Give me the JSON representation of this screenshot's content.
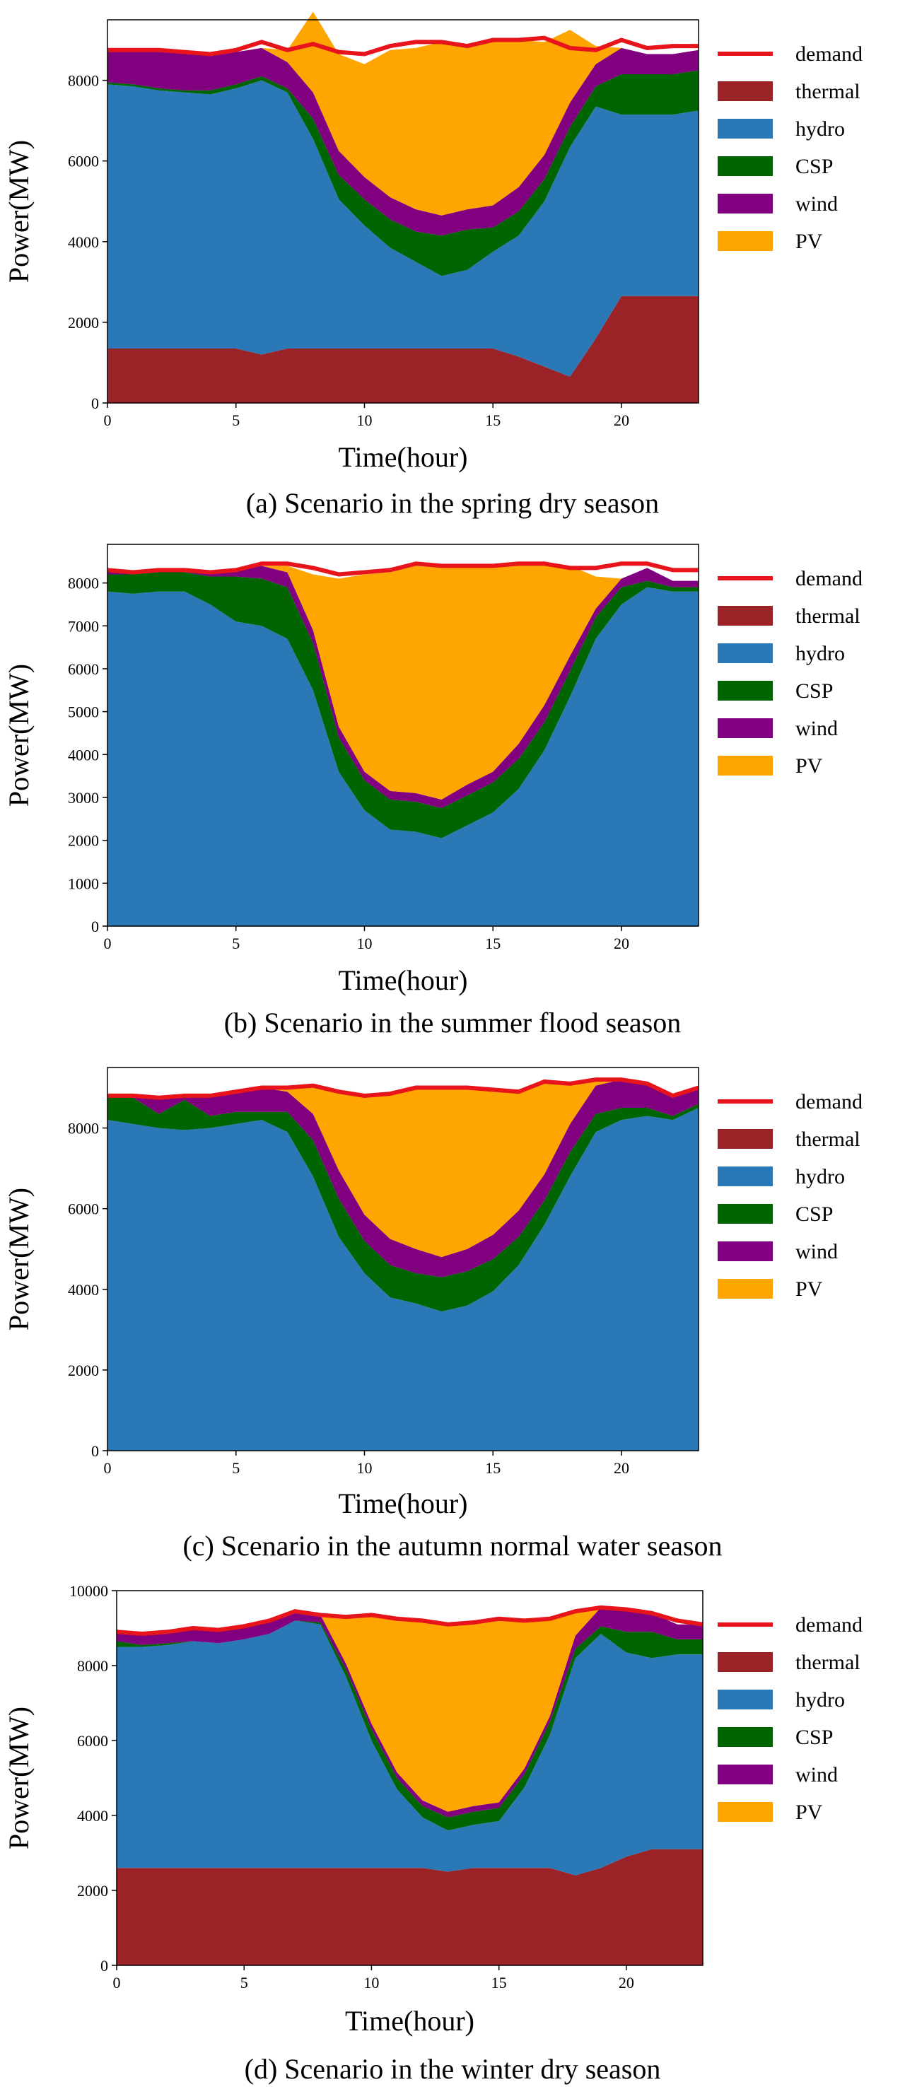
{
  "chart_data": [
    {
      "type": "area",
      "title": "(a) Scenario in the spring dry season",
      "xlabel": "Time(hour)",
      "ylabel": "Power(MW)",
      "xlim": [
        0,
        23
      ],
      "ylim": [
        0,
        9500
      ],
      "xticks": [
        0,
        5,
        10,
        15,
        20
      ],
      "yticks": [
        0,
        2000,
        4000,
        6000,
        8000
      ],
      "x": [
        0,
        1,
        2,
        3,
        4,
        5,
        6,
        7,
        8,
        9,
        10,
        11,
        12,
        13,
        14,
        15,
        16,
        17,
        18,
        19,
        20,
        21,
        22,
        23
      ],
      "legend": [
        "demand",
        "thermal",
        "hydro",
        "CSP",
        "wind",
        "PV"
      ],
      "series": [
        {
          "name": "thermal",
          "color": "#9b2226",
          "values": [
            1350,
            1350,
            1350,
            1350,
            1350,
            1350,
            1200,
            1350,
            1350,
            1350,
            1350,
            1350,
            1350,
            1350,
            1350,
            1350,
            1150,
            900,
            650,
            1600,
            2650,
            2650,
            2650,
            2650
          ]
        },
        {
          "name": "hydro",
          "color": "#2a78b5",
          "values": [
            6550,
            6500,
            6400,
            6350,
            6300,
            6450,
            6800,
            6350,
            5200,
            3700,
            3050,
            2500,
            2150,
            1800,
            1950,
            2400,
            3000,
            4100,
            5700,
            5750,
            4500,
            4500,
            4500,
            4600
          ]
        },
        {
          "name": "CSP",
          "color": "#006400",
          "values": [
            50,
            50,
            50,
            50,
            100,
            100,
            100,
            100,
            500,
            600,
            650,
            700,
            750,
            1000,
            1000,
            600,
            600,
            550,
            500,
            500,
            1000,
            1000,
            1000,
            1000
          ]
        },
        {
          "name": "wind",
          "color": "#800080",
          "values": [
            800,
            850,
            900,
            950,
            850,
            800,
            700,
            650,
            650,
            600,
            550,
            550,
            550,
            500,
            500,
            550,
            600,
            600,
            600,
            550,
            650,
            500,
            500,
            500
          ]
        },
        {
          "name": "PV",
          "color": "#ffa500",
          "values": [
            0,
            0,
            0,
            0,
            0,
            0,
            0,
            300,
            2000,
            2400,
            2800,
            3650,
            4000,
            4300,
            4000,
            4150,
            3650,
            2800,
            1800,
            450,
            0,
            0,
            0,
            0
          ]
        },
        {
          "name": "demand",
          "color": "#e8141c",
          "values": [
            8750,
            8750,
            8750,
            8700,
            8650,
            8750,
            8950,
            8750,
            8900,
            8700,
            8650,
            8850,
            8950,
            8950,
            8850,
            9000,
            9000,
            9050,
            8800,
            8750,
            9000,
            8800,
            8850,
            8850
          ]
        }
      ],
      "caption": "(a) Scenario in the spring dry season"
    },
    {
      "type": "area",
      "title": "(b) Scenario in the summer flood season",
      "xlabel": "Time(hour)",
      "ylabel": "Power(MW)",
      "xlim": [
        0,
        23
      ],
      "ylim": [
        0,
        8900
      ],
      "xticks": [
        0,
        5,
        10,
        15,
        20
      ],
      "yticks": [
        0,
        1000,
        2000,
        3000,
        4000,
        5000,
        6000,
        7000,
        8000
      ],
      "x": [
        0,
        1,
        2,
        3,
        4,
        5,
        6,
        7,
        8,
        9,
        10,
        11,
        12,
        13,
        14,
        15,
        16,
        17,
        18,
        19,
        20,
        21,
        22,
        23
      ],
      "legend": [
        "demand",
        "thermal",
        "hydro",
        "CSP",
        "wind",
        "PV"
      ],
      "series": [
        {
          "name": "thermal",
          "color": "#9b2226",
          "values": [
            0,
            0,
            0,
            0,
            0,
            0,
            0,
            0,
            0,
            0,
            0,
            0,
            0,
            0,
            0,
            0,
            0,
            0,
            0,
            0,
            0,
            0,
            0,
            0
          ]
        },
        {
          "name": "hydro",
          "color": "#2a78b5",
          "values": [
            7800,
            7750,
            7800,
            7800,
            7500,
            7100,
            7000,
            6700,
            5500,
            3600,
            2700,
            2250,
            2200,
            2050,
            2350,
            2650,
            3200,
            4100,
            5350,
            6700,
            7500,
            7900,
            7800,
            7800
          ]
        },
        {
          "name": "CSP",
          "color": "#006400",
          "values": [
            400,
            450,
            450,
            450,
            650,
            1050,
            1100,
            1200,
            1100,
            800,
            700,
            700,
            700,
            700,
            700,
            700,
            700,
            650,
            600,
            500,
            400,
            150,
            100,
            100
          ]
        },
        {
          "name": "wind",
          "color": "#800080",
          "values": [
            50,
            50,
            50,
            50,
            100,
            150,
            300,
            350,
            300,
            250,
            200,
            200,
            200,
            200,
            250,
            250,
            350,
            400,
            350,
            200,
            200,
            300,
            150,
            150
          ]
        },
        {
          "name": "PV",
          "color": "#ffa500",
          "values": [
            0,
            0,
            0,
            0,
            0,
            0,
            0,
            150,
            1300,
            3450,
            4600,
            5100,
            5300,
            5400,
            5100,
            4800,
            4200,
            3300,
            2100,
            750,
            0,
            0,
            0,
            0
          ]
        },
        {
          "name": "demand",
          "color": "#e8141c",
          "values": [
            8300,
            8250,
            8300,
            8300,
            8250,
            8300,
            8450,
            8450,
            8350,
            8200,
            8250,
            8300,
            8450,
            8400,
            8400,
            8400,
            8450,
            8450,
            8350,
            8350,
            8450,
            8450,
            8300,
            8300
          ]
        }
      ],
      "caption": "(b) Scenario in the summer flood season"
    },
    {
      "type": "area",
      "title": "(c) Scenario in the autumn normal water season",
      "xlabel": "Time(hour)",
      "ylabel": "Power(MW)",
      "xlim": [
        0,
        23
      ],
      "ylim": [
        0,
        9500
      ],
      "xticks": [
        0,
        5,
        10,
        15,
        20
      ],
      "yticks": [
        0,
        2000,
        4000,
        6000,
        8000
      ],
      "x": [
        0,
        1,
        2,
        3,
        4,
        5,
        6,
        7,
        8,
        9,
        10,
        11,
        12,
        13,
        14,
        15,
        16,
        17,
        18,
        19,
        20,
        21,
        22,
        23
      ],
      "legend": [
        "demand",
        "thermal",
        "hydro",
        "CSP",
        "wind",
        "PV"
      ],
      "series": [
        {
          "name": "thermal",
          "color": "#9b2226",
          "values": [
            0,
            0,
            0,
            0,
            0,
            0,
            0,
            0,
            0,
            0,
            0,
            0,
            0,
            0,
            0,
            0,
            0,
            0,
            0,
            0,
            0,
            0,
            0,
            0
          ]
        },
        {
          "name": "hydro",
          "color": "#2a78b5",
          "values": [
            8200,
            8100,
            8000,
            7950,
            8000,
            8100,
            8200,
            7900,
            6800,
            5300,
            4400,
            3800,
            3650,
            3450,
            3600,
            3950,
            4600,
            5600,
            6800,
            7900,
            8200,
            8300,
            8200,
            8500
          ]
        },
        {
          "name": "CSP",
          "color": "#006400",
          "values": [
            600,
            650,
            350,
            750,
            300,
            300,
            200,
            500,
            900,
            950,
            800,
            800,
            750,
            850,
            850,
            800,
            700,
            600,
            600,
            450,
            300,
            200,
            100,
            100
          ]
        },
        {
          "name": "wind",
          "color": "#800080",
          "values": [
            0,
            50,
            400,
            100,
            500,
            500,
            600,
            500,
            650,
            700,
            650,
            650,
            600,
            500,
            550,
            600,
            650,
            650,
            700,
            700,
            700,
            600,
            500,
            400
          ]
        },
        {
          "name": "PV",
          "color": "#ffa500",
          "values": [
            0,
            0,
            0,
            0,
            0,
            0,
            0,
            100,
            700,
            1950,
            2950,
            3600,
            4050,
            4200,
            4000,
            3600,
            2950,
            2300,
            1000,
            150,
            0,
            0,
            0,
            0
          ]
        },
        {
          "name": "demand",
          "color": "#e8141c",
          "values": [
            8800,
            8800,
            8750,
            8800,
            8800,
            8900,
            9000,
            9000,
            9050,
            8900,
            8800,
            8850,
            9000,
            9000,
            9000,
            8950,
            8900,
            9150,
            9100,
            9200,
            9200,
            9100,
            8800,
            9000
          ]
        }
      ],
      "caption": "(c) Scenario in the autumn normal water season"
    },
    {
      "type": "area",
      "title": "(d) Scenario in the winter dry season",
      "xlabel": "Time(hour)",
      "ylabel": "Power(MW)",
      "xlim": [
        0,
        23
      ],
      "ylim": [
        0,
        10000
      ],
      "xticks": [
        0,
        5,
        10,
        15,
        20
      ],
      "yticks": [
        0,
        2000,
        4000,
        6000,
        8000,
        10000
      ],
      "x": [
        0,
        1,
        2,
        3,
        4,
        5,
        6,
        7,
        8,
        9,
        10,
        11,
        12,
        13,
        14,
        15,
        16,
        17,
        18,
        19,
        20,
        21,
        22,
        23
      ],
      "legend": [
        "demand",
        "thermal",
        "hydro",
        "CSP",
        "wind",
        "PV"
      ],
      "series": [
        {
          "name": "thermal",
          "color": "#9b2226",
          "values": [
            2600,
            2600,
            2600,
            2600,
            2600,
            2600,
            2600,
            2600,
            2600,
            2600,
            2600,
            2600,
            2600,
            2500,
            2600,
            2600,
            2600,
            2600,
            2400,
            2600,
            2900,
            3100,
            3100,
            3100
          ]
        },
        {
          "name": "hydro",
          "color": "#2a78b5",
          "values": [
            5900,
            5900,
            5950,
            6050,
            6000,
            6100,
            6250,
            6600,
            6500,
            5100,
            3400,
            2100,
            1350,
            1100,
            1150,
            1250,
            2150,
            3550,
            5800,
            6250,
            5450,
            5100,
            5200,
            5200
          ]
        },
        {
          "name": "CSP",
          "color": "#006400",
          "values": [
            150,
            50,
            50,
            0,
            0,
            0,
            0,
            0,
            50,
            200,
            300,
            300,
            300,
            350,
            350,
            350,
            350,
            350,
            250,
            200,
            550,
            700,
            400,
            400
          ]
        },
        {
          "name": "wind",
          "color": "#800080",
          "values": [
            250,
            300,
            300,
            350,
            350,
            350,
            350,
            250,
            200,
            150,
            150,
            150,
            150,
            150,
            150,
            150,
            150,
            150,
            350,
            500,
            550,
            500,
            400,
            400
          ]
        },
        {
          "name": "PV",
          "color": "#ffa500",
          "values": [
            0,
            0,
            0,
            0,
            0,
            0,
            0,
            0,
            0,
            1250,
            2900,
            4100,
            4800,
            5000,
            4900,
            4900,
            3950,
            2550,
            650,
            0,
            0,
            0,
            0,
            0
          ]
        },
        {
          "name": "demand",
          "color": "#e8141c",
          "values": [
            8900,
            8850,
            8900,
            9000,
            8950,
            9050,
            9200,
            9450,
            9350,
            9300,
            9350,
            9250,
            9200,
            9100,
            9150,
            9250,
            9200,
            9250,
            9450,
            9550,
            9500,
            9400,
            9200,
            9100
          ]
        }
      ],
      "caption": "(d) Scenario in the winter dry season"
    }
  ]
}
